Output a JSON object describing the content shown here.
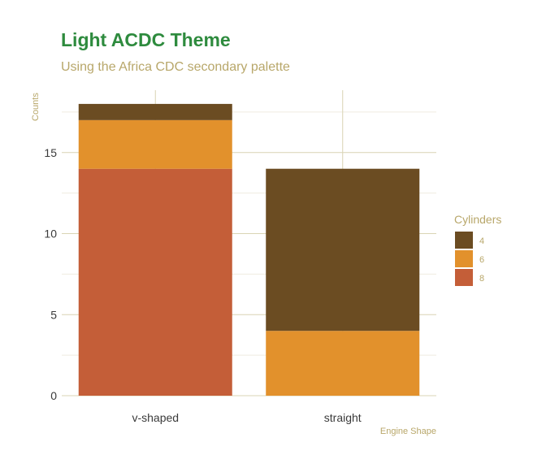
{
  "colors": {
    "title": "#2e8b3e",
    "subtitle": "#b8a76a",
    "axis_text": "#b8a76a",
    "tick_text": "#3a3a3a",
    "grid_major": "#d9d4b4",
    "grid_minor": "#efece0",
    "series": {
      "4": "#6b4c22",
      "6": "#e2912c",
      "8": "#c45e38"
    }
  },
  "chart_data": {
    "type": "bar",
    "stacked": true,
    "title": "Light ACDC Theme",
    "subtitle": "Using the Africa CDC secondary palette",
    "xlabel": "Engine Shape",
    "ylabel": "Counts",
    "categories": [
      "v-shaped",
      "straight"
    ],
    "series": [
      {
        "name": "8",
        "values": [
          14,
          0
        ]
      },
      {
        "name": "6",
        "values": [
          3,
          4
        ]
      },
      {
        "name": "4",
        "values": [
          1,
          10
        ]
      }
    ],
    "ylim": [
      0,
      18
    ],
    "y_ticks": [
      0,
      5,
      10,
      15
    ],
    "legend": {
      "title": "Cylinders",
      "position": "right",
      "order": [
        "4",
        "6",
        "8"
      ]
    },
    "grid": true
  }
}
